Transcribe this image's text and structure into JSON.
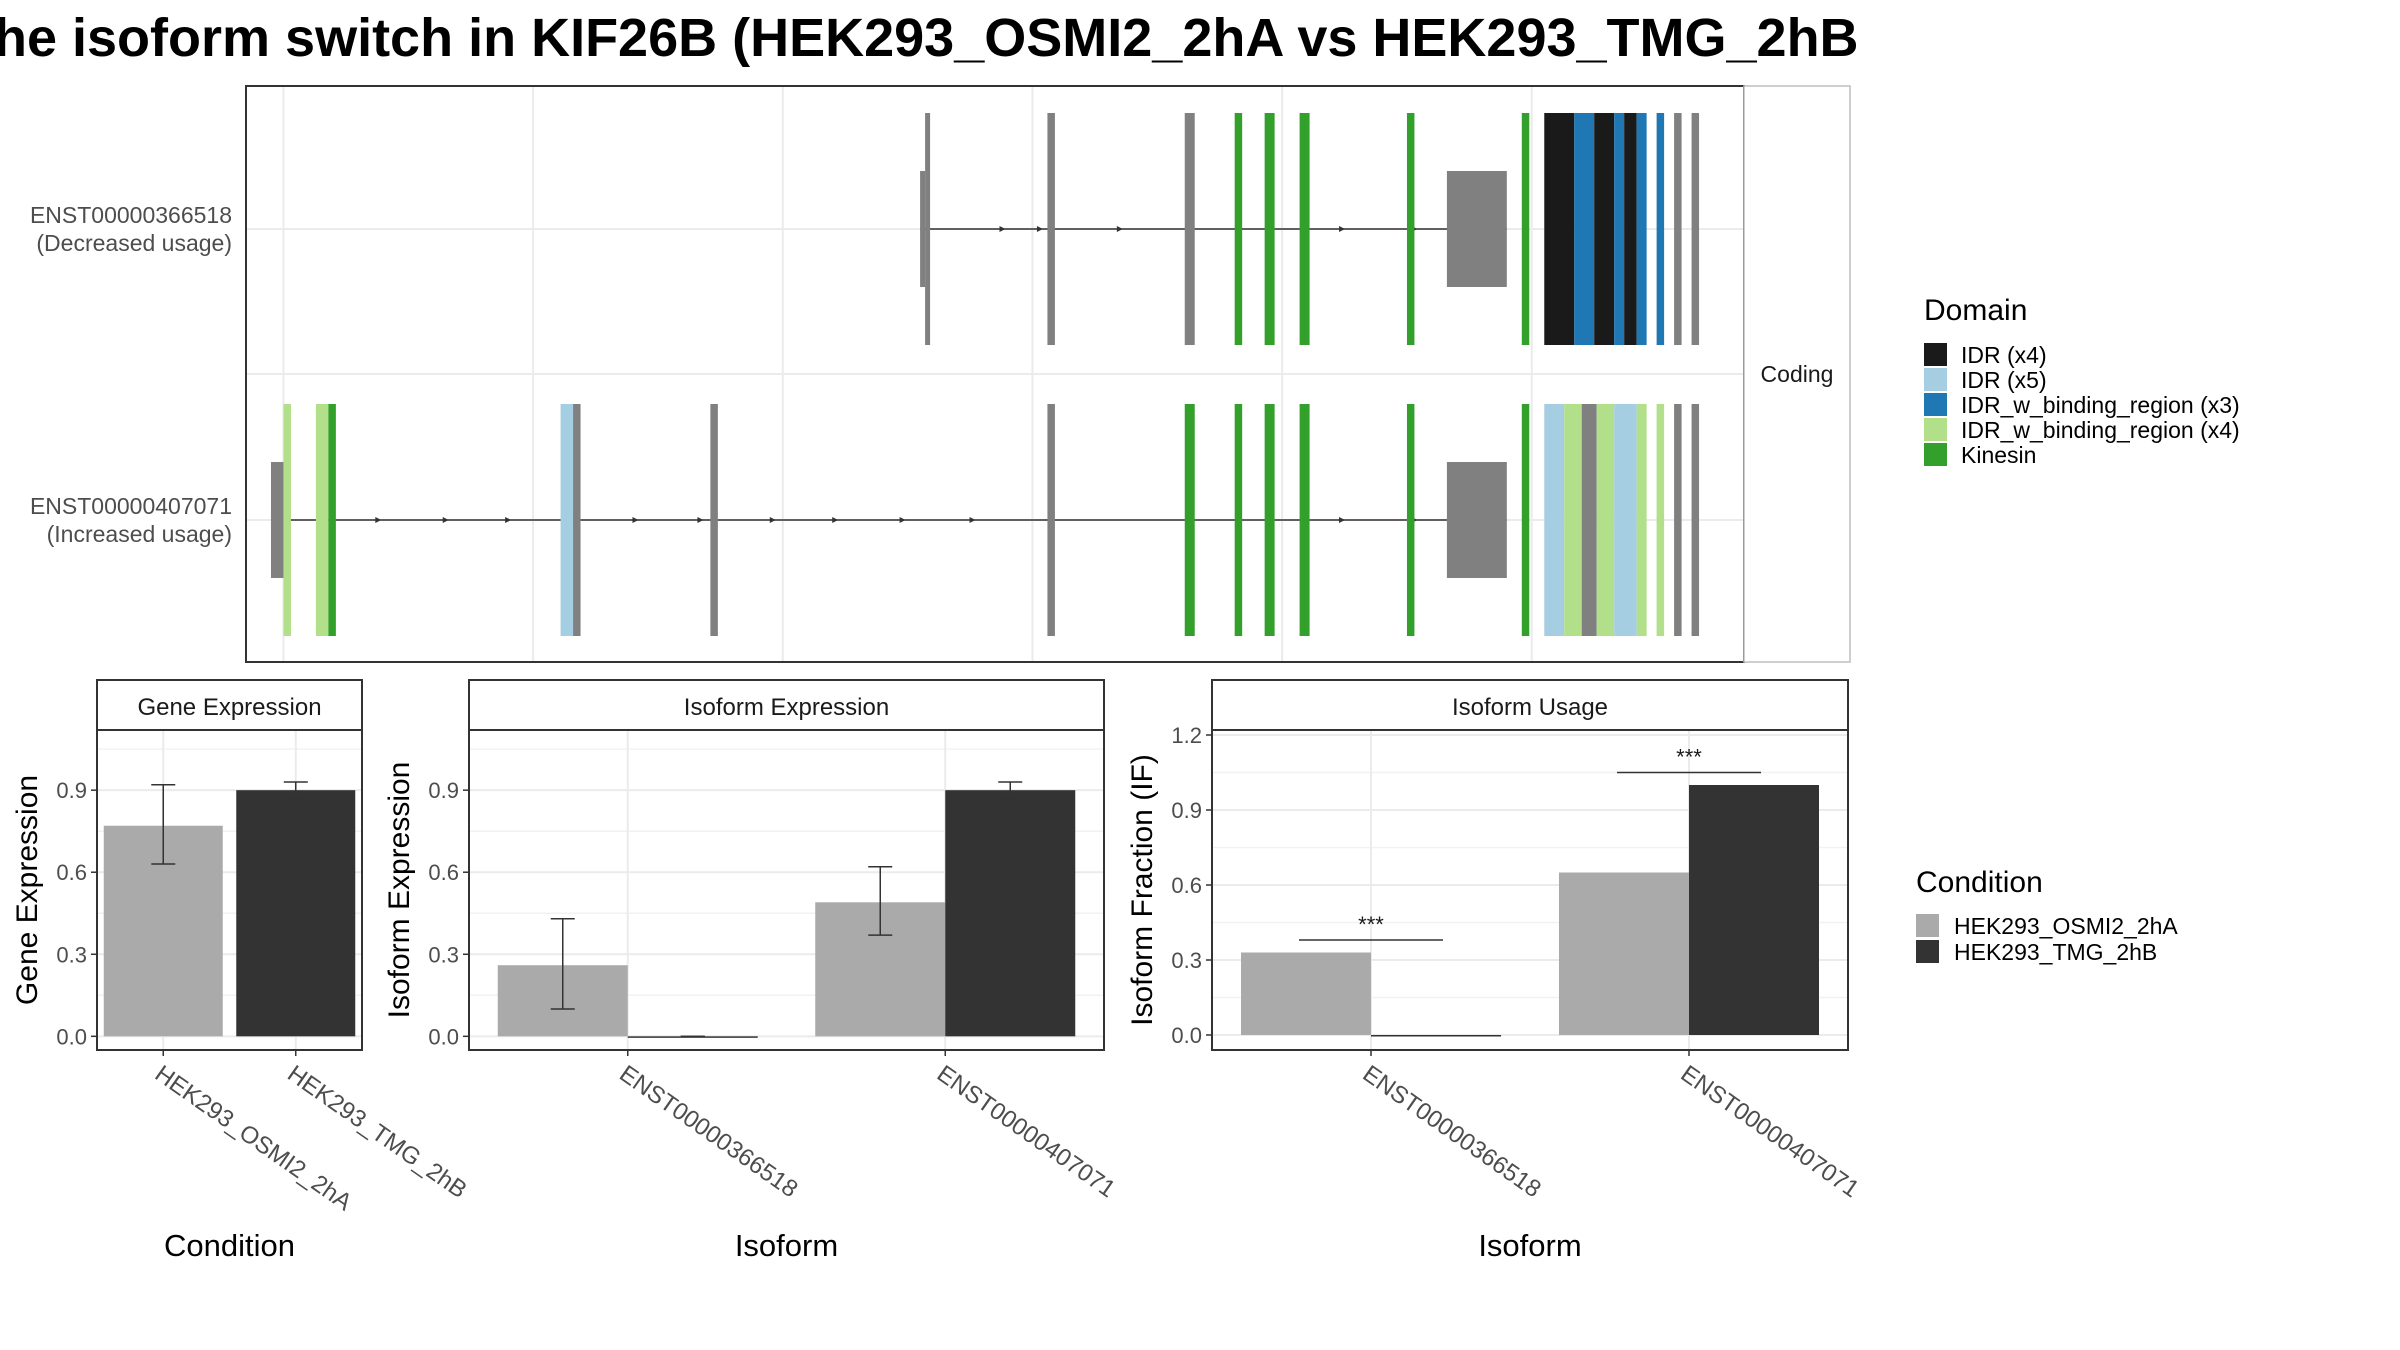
{
  "title": "he isoform switch in KIF26B (HEK293_OSMI2_2hA vs HEK293_TMG_2hB",
  "colors": {
    "idr": "#1a1a1a",
    "idr_x5": "#a6cee3",
    "idr_w_binding_x3": "#1f78b4",
    "idr_w_binding_x4": "#b2df8a",
    "kinesin": "#33a02c",
    "exon": "#808080",
    "cond_a": "#aaaaaa",
    "cond_b": "#333333",
    "grid": "#ebebeb",
    "panel_border": "#333333"
  },
  "transcript_panel": {
    "strip_label": "Coding",
    "transcripts": [
      {
        "id": "ENST00000366518",
        "usage": "(Decreased usage)",
        "start": 63.0,
        "end": 86.5,
        "utr5": [
          [
            63.0,
            63.2
          ]
        ],
        "utr3": [
          [
            84.1,
            86.5
          ]
        ],
        "exons": [
          [
            63.2,
            63.4,
            "exon"
          ],
          [
            68.1,
            68.4,
            "exon"
          ],
          [
            73.6,
            74.0,
            "exon"
          ],
          [
            75.6,
            75.9,
            "kinesin"
          ],
          [
            76.8,
            77.2,
            "kinesin"
          ],
          [
            78.2,
            78.6,
            "kinesin"
          ],
          [
            82.5,
            82.8,
            "kinesin"
          ],
          [
            87.1,
            87.4,
            "kinesin"
          ],
          [
            88.0,
            89.2,
            "idr"
          ],
          [
            89.2,
            90.0,
            "idr_w_binding_x3"
          ],
          [
            90.0,
            90.8,
            "idr"
          ],
          [
            90.8,
            91.2,
            "idr_w_binding_x3"
          ],
          [
            91.2,
            91.7,
            "idr"
          ],
          [
            91.7,
            92.1,
            "idr_w_binding_x3"
          ],
          [
            92.5,
            92.8,
            "idr_w_binding_x3"
          ],
          [
            93.2,
            93.5,
            "exon"
          ],
          [
            93.9,
            94.2,
            "exon"
          ]
        ],
        "arrows": [
          66.3,
          67.8,
          71.0,
          79.9,
          82.8,
          85.4
        ]
      },
      {
        "id": "ENST00000407071",
        "usage": "(Increased usage)",
        "start": 37.0,
        "end": 86.5,
        "utr5": [
          [
            37.0,
            37.5
          ]
        ],
        "utr3": [
          [
            84.1,
            86.5
          ]
        ],
        "exons": [
          [
            37.5,
            37.8,
            "idr_w_binding_x4"
          ],
          [
            38.8,
            39.3,
            "idr_w_binding_x4"
          ],
          [
            39.3,
            39.6,
            "kinesin"
          ],
          [
            48.6,
            49.1,
            "idr_x5"
          ],
          [
            49.1,
            49.4,
            "exon"
          ],
          [
            54.6,
            54.9,
            "exon"
          ],
          [
            68.1,
            68.4,
            "exon"
          ],
          [
            73.6,
            74.0,
            "kinesin"
          ],
          [
            75.6,
            75.9,
            "kinesin"
          ],
          [
            76.8,
            77.2,
            "kinesin"
          ],
          [
            78.2,
            78.6,
            "kinesin"
          ],
          [
            82.5,
            82.8,
            "kinesin"
          ],
          [
            87.1,
            87.4,
            "kinesin"
          ],
          [
            88.0,
            88.8,
            "idr_x5"
          ],
          [
            88.8,
            89.5,
            "idr_w_binding_x4"
          ],
          [
            89.5,
            90.1,
            "exon"
          ],
          [
            90.1,
            90.8,
            "idr_w_binding_x4"
          ],
          [
            90.8,
            91.7,
            "idr_x5"
          ],
          [
            91.7,
            92.1,
            "idr_w_binding_x4"
          ],
          [
            92.5,
            92.8,
            "idr_w_binding_x4"
          ],
          [
            93.2,
            93.5,
            "exon"
          ],
          [
            93.9,
            94.2,
            "exon"
          ]
        ],
        "arrows": [
          41.3,
          44.0,
          46.5,
          51.6,
          54.2,
          57.1,
          59.6,
          62.3,
          65.1,
          79.9,
          82.8,
          85.4
        ]
      }
    ],
    "xlim": [
      36.0,
      96.0
    ],
    "x_gridlines": [
      37.5,
      47.5,
      57.5,
      67.5,
      77.5,
      87.5
    ]
  },
  "domain_legend": {
    "title": "Domain",
    "items": [
      {
        "label": "IDR (x4)",
        "color": "#1a1a1a"
      },
      {
        "label": "IDR (x5)",
        "color": "#a6cee3"
      },
      {
        "label": "IDR_w_binding_region (x3)",
        "color": "#1f78b4"
      },
      {
        "label": "IDR_w_binding_region (x4)",
        "color": "#b2df8a"
      },
      {
        "label": "Kinesin",
        "color": "#33a02c"
      }
    ]
  },
  "condition_legend": {
    "title": "Condition",
    "items": [
      {
        "label": "HEK293_OSMI2_2hA",
        "color": "#aaaaaa"
      },
      {
        "label": "HEK293_TMG_2hB",
        "color": "#333333"
      }
    ]
  },
  "chart_data": [
    {
      "type": "bar",
      "title": "Gene Expression",
      "xlabel": "Condition",
      "ylabel": "Gene Expression",
      "ylim": [
        -0.05,
        1.12
      ],
      "yticks": [
        0.0,
        0.3,
        0.6,
        0.9
      ],
      "ytick_labels": [
        "0.0",
        "0.3",
        "0.6",
        "0.9"
      ],
      "categories": [
        "HEK293_OSMI2_2hA",
        "HEK293_TMG_2hB"
      ],
      "series": [
        {
          "condition": "HEK293_OSMI2_2hA",
          "color": "#aaaaaa",
          "values": [
            0.77,
            null
          ],
          "err_low": [
            0.63,
            null
          ],
          "err_high": [
            0.92,
            null
          ]
        },
        {
          "condition": "HEK293_TMG_2hB",
          "color": "#333333",
          "values": [
            null,
            0.9
          ],
          "err_low": [
            null,
            0.87
          ],
          "err_high": [
            null,
            0.93
          ]
        }
      ],
      "significance": []
    },
    {
      "type": "bar",
      "title": "Isoform Expression",
      "xlabel": "Isoform",
      "ylabel": "Isoform Expression",
      "ylim": [
        -0.05,
        1.12
      ],
      "yticks": [
        0.0,
        0.3,
        0.6,
        0.9
      ],
      "ytick_labels": [
        "0.0",
        "0.3",
        "0.6",
        "0.9"
      ],
      "categories": [
        "ENST00000366518",
        "ENST00000407071"
      ],
      "series": [
        {
          "condition": "HEK293_OSMI2_2hA",
          "color": "#aaaaaa",
          "values": [
            0.26,
            0.49
          ],
          "err_low": [
            0.1,
            0.37
          ],
          "err_high": [
            0.43,
            0.62
          ]
        },
        {
          "condition": "HEK293_TMG_2hB",
          "color": "#333333",
          "values": [
            0.0,
            0.9
          ],
          "err_low": [
            0.0,
            0.87
          ],
          "err_high": [
            0.0,
            0.93
          ]
        }
      ],
      "significance": []
    },
    {
      "type": "bar",
      "title": "Isoform Usage",
      "xlabel": "Isoform",
      "ylabel": "Isoform Fraction (IF)",
      "ylim": [
        -0.06,
        1.22
      ],
      "yticks": [
        0.0,
        0.3,
        0.6,
        0.9,
        1.2
      ],
      "ytick_labels": [
        "0.0",
        "0.3",
        "0.6",
        "0.9",
        "1.2"
      ],
      "categories": [
        "ENST00000366518",
        "ENST00000407071"
      ],
      "series": [
        {
          "condition": "HEK293_OSMI2_2hA",
          "color": "#aaaaaa",
          "values": [
            0.33,
            0.65
          ]
        },
        {
          "condition": "HEK293_TMG_2hB",
          "color": "#333333",
          "values": [
            0.0,
            1.0
          ]
        }
      ],
      "significance": [
        {
          "category_index": 0,
          "label": "***",
          "y": 0.38
        },
        {
          "category_index": 1,
          "label": "***",
          "y": 1.05
        }
      ]
    }
  ]
}
